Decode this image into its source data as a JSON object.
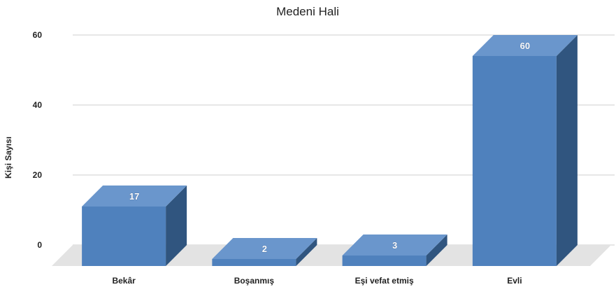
{
  "chart_data": {
    "type": "bar",
    "title": "Medeni Hali",
    "ylabel": "Kişi Sayısı",
    "xlabel": "",
    "categories": [
      "Bekâr",
      "Boşanmış",
      "Eşi vefat etmiş",
      "Evli"
    ],
    "values": [
      17,
      2,
      3,
      60
    ],
    "ylim": [
      0,
      60
    ],
    "yticks": [
      "0",
      "20",
      "40",
      "60"
    ],
    "grid": true,
    "legend": "none",
    "colors": {
      "front": "#4f81bd",
      "top": "#6a96cc",
      "side": "#30557f",
      "floor": "#e3e3e3"
    }
  }
}
